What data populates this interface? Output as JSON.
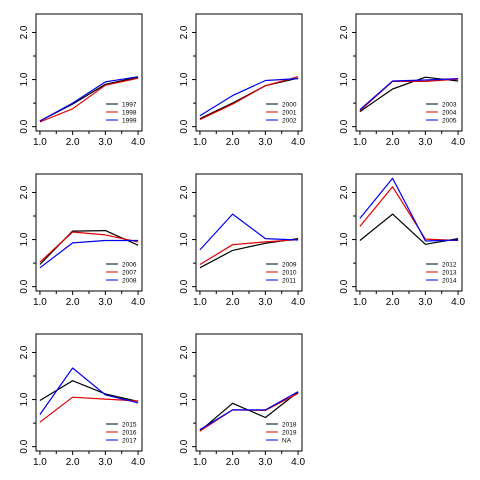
{
  "colors": {
    "series1": "#000000",
    "series2": "#e00000",
    "series3": "#0000ee"
  },
  "chart_data": [
    {
      "type": "line",
      "x": [
        1,
        2,
        3,
        4
      ],
      "xticks": [
        "1.0",
        "2.0",
        "3.0",
        "4.0"
      ],
      "yticks": [
        "0.0",
        "1.0",
        "2.0"
      ],
      "xlim": [
        1,
        4
      ],
      "ylim": [
        0,
        2.3
      ],
      "legend_position": "bottom-right",
      "series": [
        {
          "name": "1997",
          "values": [
            0.12,
            0.48,
            0.9,
            1.05
          ]
        },
        {
          "name": "1998",
          "values": [
            0.1,
            0.38,
            0.88,
            1.03
          ]
        },
        {
          "name": "1999",
          "values": [
            0.12,
            0.5,
            0.95,
            1.06
          ]
        }
      ]
    },
    {
      "type": "line",
      "x": [
        1,
        2,
        3,
        4
      ],
      "xticks": [
        "1.0",
        "2.0",
        "3.0",
        "4.0"
      ],
      "yticks": [
        "0.0",
        "1.0",
        "2.0"
      ],
      "xlim": [
        1,
        4
      ],
      "ylim": [
        0,
        2.3
      ],
      "legend_position": "bottom-right",
      "series": [
        {
          "name": "2000",
          "values": [
            0.17,
            0.5,
            0.87,
            1.03
          ]
        },
        {
          "name": "2001",
          "values": [
            0.15,
            0.48,
            0.87,
            1.06
          ]
        },
        {
          "name": "2002",
          "values": [
            0.23,
            0.66,
            0.98,
            1.02
          ]
        }
      ]
    },
    {
      "type": "line",
      "x": [
        1,
        2,
        3,
        4
      ],
      "xticks": [
        "1.0",
        "2.0",
        "3.0",
        "4.0"
      ],
      "yticks": [
        "0.0",
        "1.0",
        "2.0"
      ],
      "xlim": [
        1,
        4
      ],
      "ylim": [
        0,
        2.3
      ],
      "legend_position": "bottom-right",
      "series": [
        {
          "name": "2003",
          "values": [
            0.32,
            0.8,
            1.05,
            0.97
          ]
        },
        {
          "name": "2004",
          "values": [
            0.34,
            0.96,
            0.96,
            1.01
          ]
        },
        {
          "name": "2005",
          "values": [
            0.36,
            0.97,
            0.99,
            1.02
          ]
        }
      ]
    },
    {
      "type": "line",
      "x": [
        1,
        2,
        3,
        4
      ],
      "xticks": [
        "1.0",
        "2.0",
        "3.0",
        "4.0"
      ],
      "yticks": [
        "0.0",
        "1.0",
        "2.0"
      ],
      "xlim": [
        1,
        4
      ],
      "ylim": [
        0,
        2.3
      ],
      "legend_position": "bottom-right",
      "series": [
        {
          "name": "2006",
          "values": [
            0.47,
            1.18,
            1.19,
            0.88
          ]
        },
        {
          "name": "2007",
          "values": [
            0.52,
            1.16,
            1.1,
            0.95
          ]
        },
        {
          "name": "2008",
          "values": [
            0.4,
            0.93,
            0.98,
            0.98
          ]
        }
      ]
    },
    {
      "type": "line",
      "x": [
        1,
        2,
        3,
        4
      ],
      "xticks": [
        "1.0",
        "2.0",
        "3.0",
        "4.0"
      ],
      "yticks": [
        "0.0",
        "1.0",
        "2.0"
      ],
      "xlim": [
        1,
        4
      ],
      "ylim": [
        0,
        2.3
      ],
      "legend_position": "bottom-right",
      "series": [
        {
          "name": "2009",
          "values": [
            0.4,
            0.77,
            0.92,
            1.02
          ]
        },
        {
          "name": "2010",
          "values": [
            0.47,
            0.89,
            0.95,
            1.0
          ]
        },
        {
          "name": "2011",
          "values": [
            0.78,
            1.54,
            1.02,
            0.99
          ]
        }
      ]
    },
    {
      "type": "line",
      "x": [
        1,
        2,
        3,
        4
      ],
      "xticks": [
        "1.0",
        "2.0",
        "3.0",
        "4.0"
      ],
      "yticks": [
        "0.0",
        "1.0",
        "2.0"
      ],
      "xlim": [
        1,
        4
      ],
      "ylim": [
        0,
        2.3
      ],
      "legend_position": "bottom-right",
      "series": [
        {
          "name": "2012",
          "values": [
            0.98,
            1.54,
            0.9,
            1.02
          ]
        },
        {
          "name": "2013",
          "values": [
            1.28,
            2.12,
            1.01,
            0.98
          ]
        },
        {
          "name": "2014",
          "values": [
            1.45,
            2.3,
            0.97,
            0.99
          ]
        }
      ]
    },
    {
      "type": "line",
      "x": [
        1,
        2,
        3,
        4
      ],
      "xticks": [
        "1.0",
        "2.0",
        "3.0",
        "4.0"
      ],
      "yticks": [
        "0.0",
        "1.0",
        "2.0"
      ],
      "xlim": [
        1,
        4
      ],
      "ylim": [
        0,
        2.3
      ],
      "legend_position": "bottom-right",
      "series": [
        {
          "name": "2015",
          "values": [
            0.98,
            1.4,
            1.12,
            0.96
          ]
        },
        {
          "name": "2016",
          "values": [
            0.52,
            1.05,
            1.01,
            0.97
          ]
        },
        {
          "name": "2017",
          "values": [
            0.68,
            1.67,
            1.1,
            0.93
          ]
        }
      ]
    },
    {
      "type": "line",
      "x": [
        1,
        2,
        3,
        4
      ],
      "xticks": [
        "1.0",
        "2.0",
        "3.0",
        "4.0"
      ],
      "yticks": [
        "0.0",
        "1.0",
        "2.0"
      ],
      "xlim": [
        1,
        4
      ],
      "ylim": [
        0,
        2.3
      ],
      "legend_position": "bottom-right",
      "series": [
        {
          "name": "2018",
          "values": [
            0.33,
            0.92,
            0.62,
            1.16
          ]
        },
        {
          "name": "2019",
          "values": [
            0.33,
            0.78,
            0.77,
            1.13
          ]
        },
        {
          "name": "NA",
          "values": [
            0.36,
            0.78,
            0.78,
            1.17
          ]
        }
      ]
    }
  ]
}
